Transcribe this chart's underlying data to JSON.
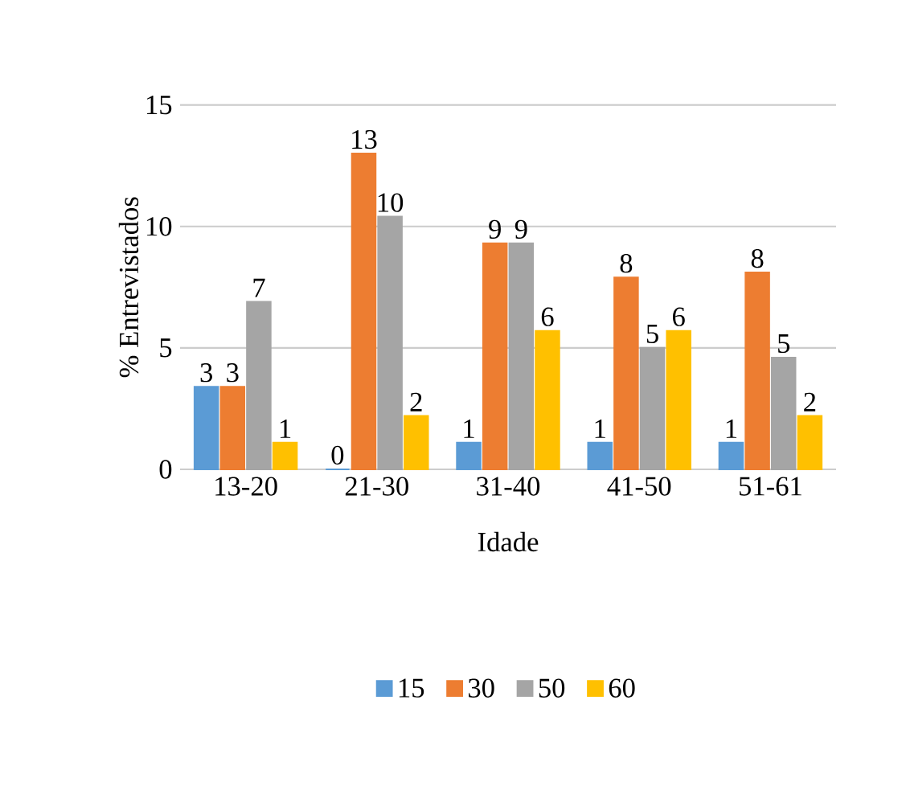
{
  "chart_data": {
    "type": "bar",
    "xlabel": "Idade",
    "ylabel": "% Entrevistados",
    "categories": [
      "13-20",
      "21-30",
      "31-40",
      "41-50",
      "51-61"
    ],
    "series": [
      {
        "name": "15",
        "color": "#5b9bd5",
        "values": [
          3.4,
          0,
          1.1,
          1.1,
          1.1
        ],
        "value_labels": [
          "3",
          "0",
          "1",
          "1",
          "1"
        ]
      },
      {
        "name": "30",
        "color": "#ed7d31",
        "values": [
          3.4,
          13,
          9.3,
          7.9,
          8.1
        ],
        "value_labels": [
          "3",
          "13",
          "9",
          "8",
          "8"
        ]
      },
      {
        "name": "50",
        "color": "#a5a5a5",
        "values": [
          6.9,
          10.4,
          9.3,
          5,
          4.6
        ],
        "value_labels": [
          "7",
          "10",
          "9",
          "5",
          "5"
        ]
      },
      {
        "name": "60",
        "color": "#ffc000",
        "values": [
          1.1,
          2.2,
          5.7,
          5.7,
          2.2
        ],
        "value_labels": [
          "1",
          "2",
          "6",
          "6",
          "2"
        ]
      }
    ],
    "ylim": [
      0,
      15
    ],
    "yticks": [
      0,
      5,
      10,
      15
    ],
    "grid": "y",
    "legend": "bottom"
  }
}
